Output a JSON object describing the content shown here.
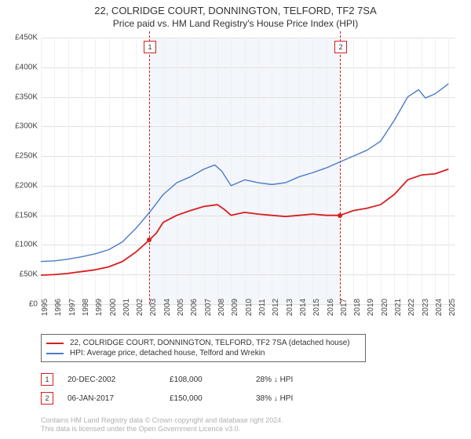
{
  "title_main": "22, COLRIDGE COURT, DONNINGTON, TELFORD, TF2 7SA",
  "title_sub": "Price paid vs. HM Land Registry's House Price Index (HPI)",
  "chart": {
    "type": "line",
    "background_color": "#ffffff",
    "grid_color": "#e0e0e0",
    "vgrid_color": "#f0f0f0",
    "shade_color": "#f3f6fb",
    "ylim": [
      0,
      450000
    ],
    "ytick_step": 50000,
    "yticks": [
      "£0",
      "£50K",
      "£100K",
      "£150K",
      "£200K",
      "£250K",
      "£300K",
      "£350K",
      "£400K",
      "£450K"
    ],
    "years": [
      1995,
      1996,
      1997,
      1998,
      1999,
      2000,
      2001,
      2002,
      2003,
      2004,
      2005,
      2006,
      2007,
      2008,
      2009,
      2010,
      2011,
      2012,
      2013,
      2014,
      2015,
      2016,
      2017,
      2018,
      2019,
      2020,
      2021,
      2022,
      2023,
      2024,
      2025
    ],
    "xlim": [
      1995,
      2025.5
    ],
    "shade_start_year": 2002.97,
    "shade_end_year": 2017.02,
    "series": [
      {
        "key": "property",
        "label": "22, COLRIDGE COURT, DONNINGTON, TELFORD, TF2 7SA (detached house)",
        "color": "#d91e1e",
        "line_width": 1.8,
        "points_year_value": [
          [
            1995,
            49000
          ],
          [
            1996,
            50000
          ],
          [
            1997,
            52000
          ],
          [
            1998,
            55000
          ],
          [
            1999,
            58000
          ],
          [
            2000,
            63000
          ],
          [
            2001,
            72000
          ],
          [
            2002,
            88000
          ],
          [
            2002.97,
            108000
          ],
          [
            2003.5,
            120000
          ],
          [
            2004,
            138000
          ],
          [
            2005,
            150000
          ],
          [
            2006,
            158000
          ],
          [
            2007,
            165000
          ],
          [
            2008,
            168000
          ],
          [
            2008.5,
            160000
          ],
          [
            2009,
            150000
          ],
          [
            2010,
            155000
          ],
          [
            2011,
            152000
          ],
          [
            2012,
            150000
          ],
          [
            2013,
            148000
          ],
          [
            2014,
            150000
          ],
          [
            2015,
            152000
          ],
          [
            2016,
            150000
          ],
          [
            2017.02,
            150000
          ],
          [
            2018,
            158000
          ],
          [
            2019,
            162000
          ],
          [
            2020,
            168000
          ],
          [
            2021,
            185000
          ],
          [
            2022,
            210000
          ],
          [
            2023,
            218000
          ],
          [
            2024,
            220000
          ],
          [
            2025,
            228000
          ]
        ]
      },
      {
        "key": "hpi",
        "label": "HPI: Average price, detached house, Telford and Wrekin",
        "color": "#4a7bc8",
        "line_width": 1.4,
        "points_year_value": [
          [
            1995,
            72000
          ],
          [
            1996,
            73000
          ],
          [
            1997,
            76000
          ],
          [
            1998,
            80000
          ],
          [
            1999,
            85000
          ],
          [
            2000,
            92000
          ],
          [
            2001,
            105000
          ],
          [
            2002,
            128000
          ],
          [
            2003,
            155000
          ],
          [
            2004,
            185000
          ],
          [
            2005,
            205000
          ],
          [
            2006,
            215000
          ],
          [
            2007,
            228000
          ],
          [
            2007.8,
            235000
          ],
          [
            2008.3,
            225000
          ],
          [
            2009,
            200000
          ],
          [
            2010,
            210000
          ],
          [
            2011,
            205000
          ],
          [
            2012,
            202000
          ],
          [
            2013,
            205000
          ],
          [
            2014,
            215000
          ],
          [
            2015,
            222000
          ],
          [
            2016,
            230000
          ],
          [
            2017,
            240000
          ],
          [
            2018,
            250000
          ],
          [
            2019,
            260000
          ],
          [
            2020,
            275000
          ],
          [
            2021,
            310000
          ],
          [
            2022,
            350000
          ],
          [
            2022.8,
            362000
          ],
          [
            2023.3,
            348000
          ],
          [
            2024,
            355000
          ],
          [
            2025,
            372000
          ]
        ]
      }
    ],
    "sale_marks": [
      {
        "n": "1",
        "year": 2002.97,
        "value": 108000,
        "color": "#d91e1e"
      },
      {
        "n": "2",
        "year": 2017.02,
        "value": 150000,
        "color": "#d91e1e"
      }
    ]
  },
  "legend": {
    "border_color": "#666666",
    "rows": [
      {
        "swatch": "#d91e1e",
        "text": "22, COLRIDGE COURT, DONNINGTON, TELFORD, TF2 7SA (detached house)"
      },
      {
        "swatch": "#4a7bc8",
        "text": "HPI: Average price, detached house, Telford and Wrekin"
      }
    ]
  },
  "sales": [
    {
      "n": "1",
      "border": "#d91e1e",
      "date": "20-DEC-2002",
      "price": "£108,000",
      "pct": "28% ↓ HPI"
    },
    {
      "n": "2",
      "border": "#d91e1e",
      "date": "06-JAN-2017",
      "price": "£150,000",
      "pct": "38% ↓ HPI"
    }
  ],
  "attribution_line1": "Contains HM Land Registry data © Crown copyright and database right 2024.",
  "attribution_line2": "This data is licensed under the Open Government Licence v3.0.",
  "col_widths": {
    "date": 130,
    "price": 110,
    "pct": 120
  }
}
